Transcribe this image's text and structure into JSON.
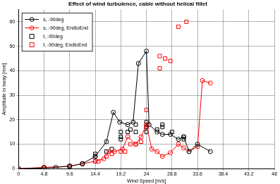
{
  "chart_data": {
    "type": "line",
    "title": "Effect of wind turbulence, cable without helical fillet",
    "x_label": "Wind Speed [m/s]",
    "y_label": "Amplitude in sway [mm]",
    "xlim": [
      0,
      48
    ],
    "xticks": [
      0,
      4.8,
      9.6,
      14.4,
      19.2,
      24,
      28.8,
      33.6,
      38.4,
      43.2,
      48
    ],
    "ylim": [
      0,
      65
    ],
    "yticks": [
      0,
      10,
      20,
      30,
      40,
      50,
      60
    ],
    "grid": true,
    "legend": "northwest",
    "series": [
      {
        "name": "s, -90deg",
        "color": "#000000",
        "marker": "circle",
        "line_style": "solid",
        "x": [
          0,
          4.8,
          7,
          9.6,
          12,
          14.4,
          16.5,
          17.8,
          19,
          20.5,
          21.5,
          22.5,
          24,
          24.5,
          26,
          27,
          28.5,
          30,
          31,
          32,
          33.6,
          36
        ],
        "values": [
          0,
          0.3,
          0.5,
          1,
          2,
          5,
          11,
          23,
          19,
          18,
          19,
          43,
          48,
          18,
          15,
          14,
          14,
          12,
          13,
          7,
          10,
          7
        ]
      },
      {
        "name": "s, -90deg, EndtoEnd",
        "color": "#ff0000",
        "marker": "circle",
        "line_style": "solid",
        "x": [
          0,
          4.8,
          9.6,
          12,
          14.4,
          16,
          17,
          18,
          19.5,
          20.5,
          22,
          23,
          24,
          25,
          26,
          27,
          28.5,
          30,
          31,
          32,
          33.6,
          34.5,
          36
        ],
        "values": [
          0,
          0.5,
          1,
          2,
          3,
          4,
          7,
          7,
          8,
          13,
          10,
          13,
          18,
          8,
          7,
          5,
          6.5,
          10,
          8.5,
          7,
          9,
          36,
          35
        ]
      },
      {
        "name": "t, -90deg",
        "color": "#000000",
        "marker": "square",
        "line_style": "none",
        "x": [
          9.6,
          12,
          14.4,
          14.4,
          16.5,
          17.5,
          19.2,
          19.2,
          19.2,
          20.5,
          21,
          22,
          22,
          24,
          24,
          24,
          26,
          27,
          27,
          28.8,
          31,
          31
        ],
        "values": [
          1,
          2,
          5,
          6,
          7,
          8,
          12,
          13,
          15,
          15,
          16,
          18,
          15,
          17,
          19,
          15,
          16,
          17,
          18,
          15,
          13,
          12
        ]
      },
      {
        "name": "t, -90deg, EndtoEnd",
        "color": "#ff0000",
        "marker": "square",
        "line_style": "none",
        "x": [
          4.8,
          9.6,
          12,
          14.4,
          15,
          16.5,
          17.5,
          19.2,
          20,
          21,
          22,
          23,
          24,
          24,
          26.5,
          26.5,
          27.5,
          28.5,
          30,
          31.5
        ],
        "values": [
          0.5,
          1,
          2,
          3,
          3,
          5,
          6,
          7,
          7,
          10,
          10,
          11,
          17,
          24,
          41,
          46,
          45,
          44,
          58,
          60
        ]
      }
    ]
  }
}
